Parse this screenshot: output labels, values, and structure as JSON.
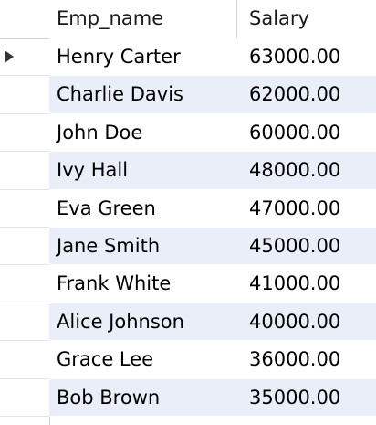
{
  "columns": {
    "name": "Emp_name",
    "salary": "Salary"
  },
  "rows": [
    {
      "name": "Henry Carter",
      "salary": "63000.00",
      "current": true
    },
    {
      "name": "Charlie Davis",
      "salary": "62000.00"
    },
    {
      "name": "John Doe",
      "salary": "60000.00"
    },
    {
      "name": "Ivy Hall",
      "salary": "48000.00"
    },
    {
      "name": "Eva Green",
      "salary": "47000.00"
    },
    {
      "name": "Jane Smith",
      "salary": "45000.00"
    },
    {
      "name": "Frank White",
      "salary": "41000.00"
    },
    {
      "name": "Alice Johnson",
      "salary": "40000.00"
    },
    {
      "name": "Grace Lee",
      "salary": "36000.00"
    },
    {
      "name": "Bob Brown",
      "salary": "35000.00"
    }
  ],
  "colors": {
    "alt_row": "#e9eef8",
    "grid_line": "#d4d4d4",
    "indicator_arrow": "#333333"
  },
  "icons": {
    "current_row": "current-row-arrow-icon"
  }
}
